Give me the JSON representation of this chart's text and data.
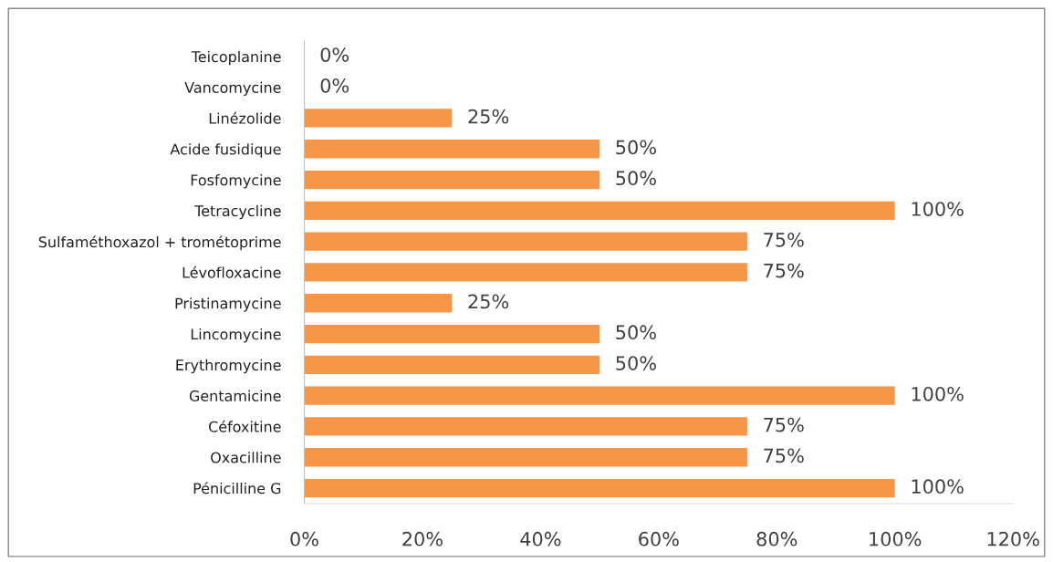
{
  "chart_data": {
    "type": "bar",
    "orientation": "horizontal",
    "categories": [
      "Teicoplanine",
      "Vancomycine",
      "Linézolide",
      "Acide fusidique",
      "Fosfomycine",
      "Tetracycline",
      "Sulfaméthoxazol + trométoprime",
      "Lévofloxacine",
      "Pristinamycine",
      "Lincomycine",
      "Erythromycine",
      "Gentamicine",
      "Céfoxitine",
      "Oxacilline",
      "Pénicilline G"
    ],
    "values": [
      0,
      0,
      25,
      50,
      50,
      100,
      75,
      75,
      25,
      50,
      50,
      100,
      75,
      75,
      100
    ],
    "value_labels": [
      "0%",
      "0%",
      "25%",
      "50%",
      "50%",
      "100%",
      "75%",
      "75%",
      "25%",
      "50%",
      "50%",
      "100%",
      "75%",
      "75%",
      "100%"
    ],
    "color": "#f79646",
    "xlim": [
      0,
      120
    ],
    "xticks": [
      {
        "value": 0,
        "label": "0%"
      },
      {
        "value": 20,
        "label": "20%"
      },
      {
        "value": 40,
        "label": "40%"
      },
      {
        "value": 60,
        "label": "60%"
      },
      {
        "value": 80,
        "label": "80%"
      },
      {
        "value": 100,
        "label": "100%"
      },
      {
        "value": 120,
        "label": "120%"
      }
    ],
    "grid": false,
    "legend": false
  }
}
